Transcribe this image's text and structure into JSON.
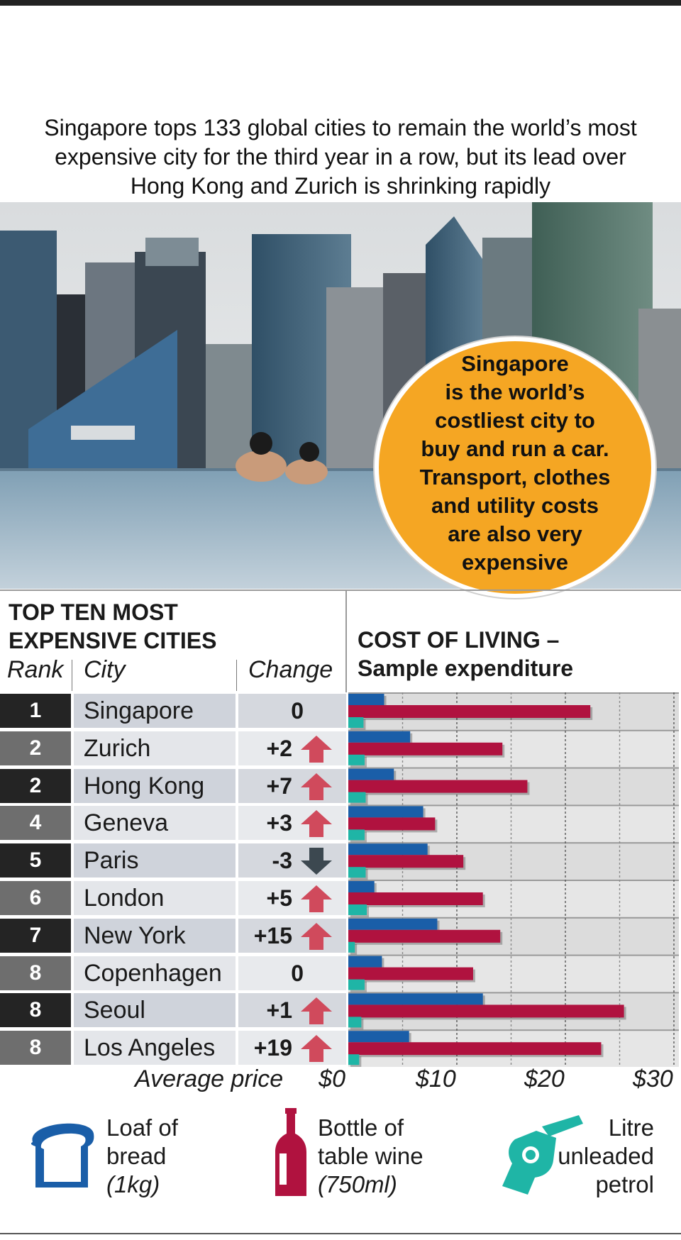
{
  "intro": {
    "line1": "Singapore tops 133 global cities to remain the world’s most",
    "line2": "expensive city for the third year in a row, but its lead over",
    "line3": "Hong Kong and Zurich is shrinking rapidly"
  },
  "callout": {
    "line1": "Singapore",
    "line2": "is the world’s",
    "line3": "costliest city to",
    "line4": "buy and run a car.",
    "line5": "Transport, clothes",
    "line6": "and utility costs",
    "line7": "are also very",
    "line8": "expensive"
  },
  "table": {
    "title1": "TOP TEN MOST",
    "title2": "EXPENSIVE CITIES",
    "col_rank": "Rank",
    "col_city": "City",
    "col_change": "Change"
  },
  "cost_title1": "COST OF LIVING –",
  "cost_title2": "Sample expenditure",
  "rows": [
    {
      "rank": "1",
      "city": "Singapore",
      "change": "0",
      "dir": "none"
    },
    {
      "rank": "2",
      "city": "Zurich",
      "change": "+2",
      "dir": "up"
    },
    {
      "rank": "2",
      "city": "Hong Kong",
      "change": "+7",
      "dir": "up"
    },
    {
      "rank": "4",
      "city": "Geneva",
      "change": "+3",
      "dir": "up"
    },
    {
      "rank": "5",
      "city": "Paris",
      "change": "-3",
      "dir": "down"
    },
    {
      "rank": "6",
      "city": "London",
      "change": "+5",
      "dir": "up"
    },
    {
      "rank": "7",
      "city": "New York",
      "change": "+15",
      "dir": "up"
    },
    {
      "rank": "8",
      "city": "Copenhagen",
      "change": "0",
      "dir": "none"
    },
    {
      "rank": "8",
      "city": "Seoul",
      "change": "+1",
      "dir": "up"
    },
    {
      "rank": "8",
      "city": "Los Angeles",
      "change": "+19",
      "dir": "up"
    }
  ],
  "axis": {
    "title": "Average price",
    "ticks": [
      "$0",
      "$10",
      "$20",
      "$30"
    ]
  },
  "legend": {
    "bread1": "Loaf of",
    "bread2": "bread",
    "bread3": "(1kg)",
    "wine1": "Bottle of",
    "wine2": "table wine",
    "wine3": "(750ml)",
    "petrol1": "Litre",
    "petrol2": "unleaded",
    "petrol3": "petrol"
  },
  "colors": {
    "bread": "#1a5ea8",
    "wine": "#b0123f",
    "petrol": "#1fb5a6",
    "arrow_up": "#d04a5c",
    "arrow_down": "#3c4850",
    "rank_dark": "#242424",
    "rank_grey": "#6e6e6e",
    "callout": "#f5a623"
  },
  "chart_data": {
    "type": "bar",
    "orientation": "horizontal",
    "categories": [
      "Singapore",
      "Zurich",
      "Hong Kong",
      "Geneva",
      "Paris",
      "London",
      "New York",
      "Copenhagen",
      "Seoul",
      "Los Angeles"
    ],
    "series": [
      {
        "name": "Loaf of bread (1kg)",
        "values": [
          3.3,
          5.7,
          4.2,
          6.9,
          7.3,
          2.4,
          8.2,
          3.1,
          12.4,
          5.6
        ]
      },
      {
        "name": "Bottle of table wine (750ml)",
        "values": [
          22.3,
          14.2,
          16.5,
          8.0,
          10.6,
          12.4,
          14.0,
          11.5,
          25.4,
          23.3
        ]
      },
      {
        "name": "Litre unleaded petrol",
        "values": [
          1.4,
          1.5,
          1.6,
          1.5,
          1.6,
          1.7,
          0.6,
          1.5,
          1.2,
          1.0
        ]
      }
    ],
    "xlabel": "Average price",
    "xlim": [
      0,
      30
    ],
    "xticks": [
      "$0",
      "$10",
      "$20",
      "$30"
    ],
    "grid": true
  }
}
